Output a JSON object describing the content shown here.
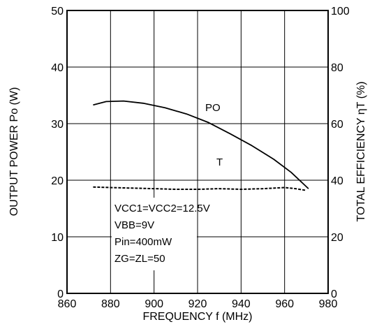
{
  "chart_data": {
    "type": "line",
    "xlabel": "FREQUENCY  f (MHz)",
    "ylabel_left": "OUTPUT POWER  Po (W)",
    "ylabel_right": "TOTAL EFFICIENCY  ηT (%)",
    "xlim": [
      860,
      980
    ],
    "ylim_left": [
      0,
      50
    ],
    "ylim_right": [
      0,
      100
    ],
    "x_ticks": [
      860,
      880,
      900,
      920,
      940,
      960,
      980
    ],
    "y_ticks_left": [
      0,
      10,
      20,
      30,
      40,
      50
    ],
    "y_ticks_right": [
      0,
      20,
      40,
      60,
      80,
      100
    ],
    "grid": true,
    "series": [
      {
        "name": "Po",
        "axis": "left",
        "style": "solid",
        "x": [
          872,
          878,
          886,
          895,
          905,
          915,
          925,
          935,
          945,
          955,
          963,
          971
        ],
        "y": [
          33.3,
          33.9,
          34.0,
          33.6,
          32.8,
          31.7,
          30.2,
          28.2,
          26.1,
          23.7,
          21.4,
          18.5
        ]
      },
      {
        "name": "ηT",
        "axis": "right",
        "style": "dashed",
        "x": [
          872,
          880,
          890,
          900,
          910,
          920,
          930,
          940,
          950,
          960,
          965,
          970
        ],
        "y": [
          37.6,
          37.4,
          37.2,
          37.0,
          36.8,
          36.8,
          37.0,
          36.8,
          37.0,
          37.4,
          37.0,
          36.4
        ]
      }
    ],
    "series_labels": {
      "po": "PO",
      "eta": "T"
    },
    "conditions": [
      "VCC1=VCC2=12.5V",
      "VBB=9V",
      "Pin=400mW",
      "ZG=ZL=50"
    ]
  }
}
